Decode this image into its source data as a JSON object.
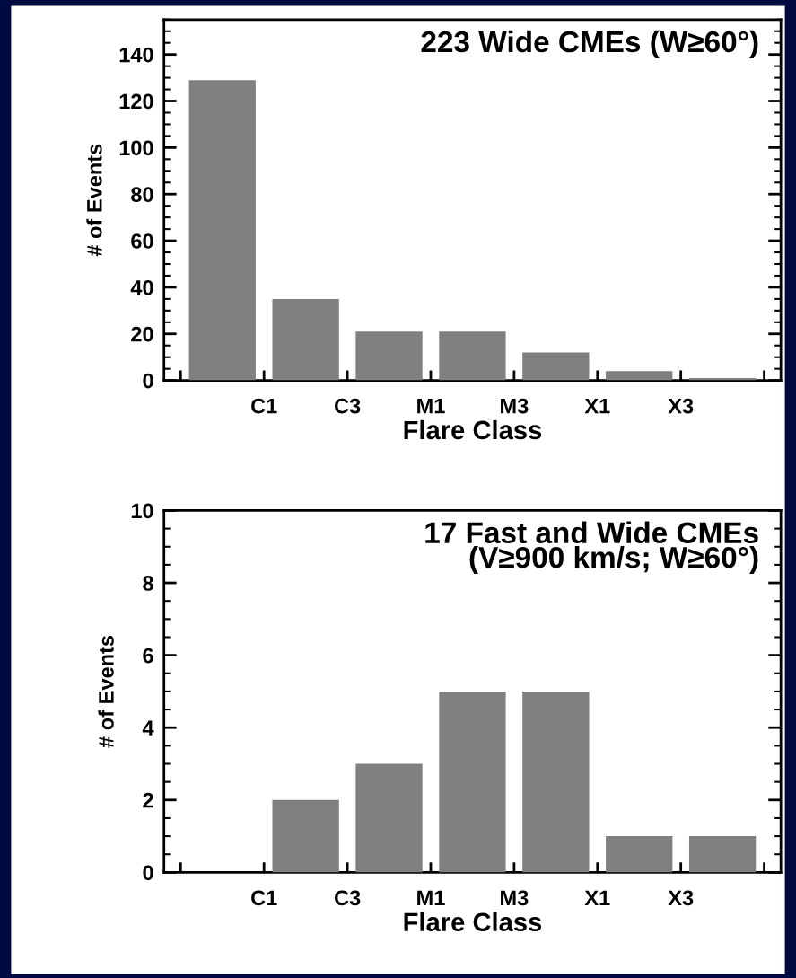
{
  "chart_data": [
    {
      "type": "bar",
      "title": "223 Wide CMEs (W≥60°)",
      "xlabel": "Flare Class",
      "ylabel": "# of Events",
      "categories": [
        null,
        "C1",
        "C3",
        "M1",
        "M3",
        "X1",
        "X3"
      ],
      "values": [
        129,
        35,
        21,
        21,
        12,
        4,
        1
      ],
      "color": "#808080",
      "ylim": [
        0,
        155
      ],
      "yticks": [
        0,
        20,
        40,
        60,
        80,
        100,
        120,
        140
      ],
      "grid": false
    },
    {
      "type": "bar",
      "title": "17 Fast and Wide CMEs\n(V≥900 km/s; W≥60°)",
      "xlabel": "Flare Class",
      "ylabel": "# of Events",
      "categories": [
        null,
        "C1",
        "C3",
        "M1",
        "M3",
        "X1",
        "X3"
      ],
      "values": [
        0,
        2,
        3,
        5,
        5,
        1,
        1
      ],
      "color": "#808080",
      "ylim": [
        0,
        10
      ],
      "yticks": [
        0,
        2,
        4,
        6,
        8,
        10
      ],
      "grid": false
    }
  ]
}
